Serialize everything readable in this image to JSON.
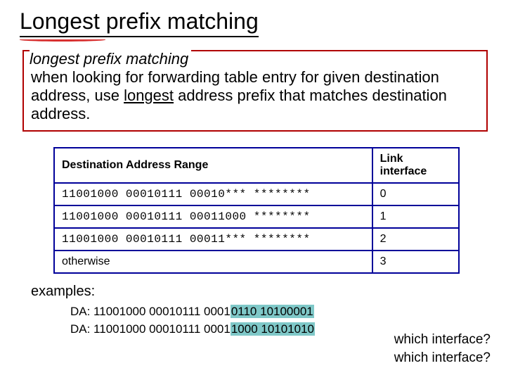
{
  "title": "Longest prefix matching",
  "definition": {
    "heading": "longest prefix matching",
    "body_pre": "when looking for forwarding table entry for given destination address, use ",
    "body_em": "longest",
    "body_post": " address prefix that matches destination address."
  },
  "table": {
    "headers": [
      "Destination Address Range",
      "Link interface"
    ],
    "rows": [
      {
        "range": "11001000 00010111 00010*** ********",
        "iface": "0"
      },
      {
        "range": "11001000 00010111 00011000 ********",
        "iface": "1"
      },
      {
        "range": "11001000 00010111 00011*** ********",
        "iface": "2"
      },
      {
        "range": "otherwise",
        "iface": "3"
      }
    ]
  },
  "examples_label": "examples:",
  "examples": [
    {
      "prefix": "DA: 11001000  00010111  0001",
      "hl": "0110  10100001"
    },
    {
      "prefix": "DA: 11001000  00010111  0001",
      "hl": "1000  10101010"
    }
  ],
  "which": "which interface?",
  "colors": {
    "definition_border": "#b00000",
    "table_border": "#000099",
    "highlight": "#7fc8c8",
    "red_underline": "#d83030"
  }
}
